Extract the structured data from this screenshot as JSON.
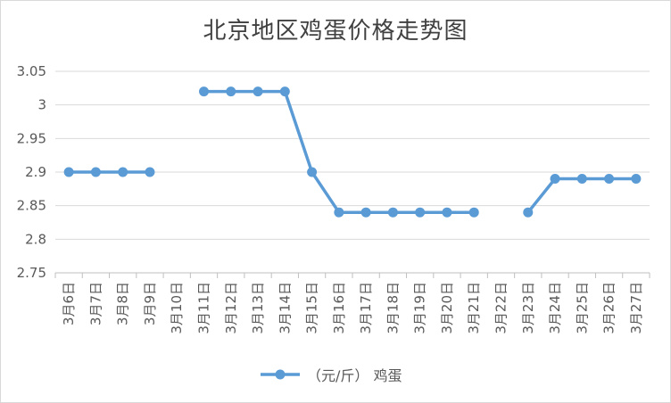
{
  "chart_data": {
    "type": "line",
    "title": "北京地区鸡蛋价格走势图",
    "xlabel": "",
    "ylabel": "",
    "ylim": [
      2.75,
      3.05
    ],
    "yticks": [
      "3.05",
      "3",
      "2.95",
      "2.9",
      "2.85",
      "2.8",
      "2.75"
    ],
    "categories": [
      "3月6日",
      "3月7日",
      "3月8日",
      "3月9日",
      "3月10日",
      "3月11日",
      "3月12日",
      "3月13日",
      "3月14日",
      "3月15日",
      "3月16日",
      "3月17日",
      "3月18日",
      "3月19日",
      "3月20日",
      "3月21日",
      "3月22日",
      "3月23日",
      "3月24日",
      "3月25日",
      "3月26日",
      "3月27日"
    ],
    "series": [
      {
        "name": "（元/斤） 鸡蛋",
        "color": "#5b9bd5",
        "values": [
          2.9,
          2.9,
          2.9,
          2.9,
          null,
          3.02,
          3.02,
          3.02,
          3.02,
          2.9,
          2.84,
          2.84,
          2.84,
          2.84,
          2.84,
          2.84,
          null,
          2.84,
          2.89,
          2.89,
          2.89,
          2.89
        ]
      }
    ],
    "grid": true,
    "legend": "bottom"
  }
}
